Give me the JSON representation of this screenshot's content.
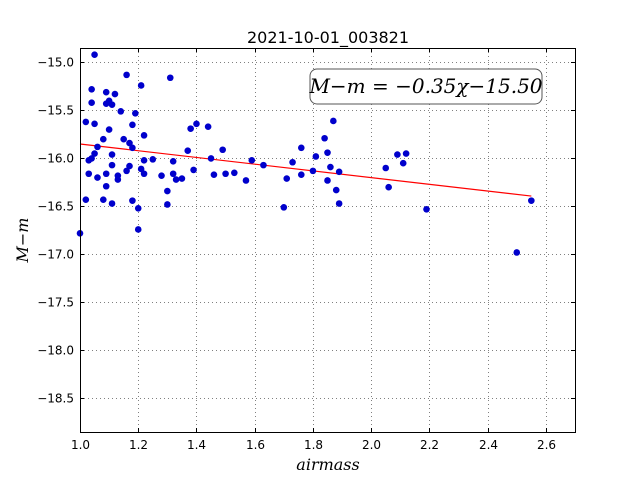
{
  "chart_data": {
    "type": "scatter",
    "title": "2021-10-01_003821",
    "xlabel": "airmass",
    "ylabel": "M−m",
    "xlim": [
      1.0,
      2.7
    ],
    "ylim": [
      -18.85,
      -14.85
    ],
    "y_inverted": true,
    "grid": true,
    "x_ticks": [
      "1.0",
      "1.2",
      "1.4",
      "1.6",
      "1.8",
      "2.0",
      "2.2",
      "2.4",
      "2.6"
    ],
    "y_ticks": [
      "−15.0",
      "−15.5",
      "−16.0",
      "−16.5",
      "−17.0",
      "−17.5",
      "−18.0",
      "−18.5"
    ],
    "annotation": "M−m = −0.35χ−15.50",
    "fit": {
      "slope": -0.35,
      "intercept": -15.5,
      "x_range": [
        1.0,
        2.55
      ],
      "color": "#ff0000"
    },
    "point_color": "#0000cc",
    "points": [
      [
        1.0,
        -16.78
      ],
      [
        1.02,
        -16.43
      ],
      [
        1.02,
        -15.62
      ],
      [
        1.03,
        -16.16
      ],
      [
        1.03,
        -16.02
      ],
      [
        1.04,
        -15.42
      ],
      [
        1.04,
        -15.28
      ],
      [
        1.04,
        -16.0
      ],
      [
        1.05,
        -14.92
      ],
      [
        1.05,
        -15.64
      ],
      [
        1.05,
        -15.95
      ],
      [
        1.06,
        -16.2
      ],
      [
        1.06,
        -15.88
      ],
      [
        1.08,
        -15.8
      ],
      [
        1.08,
        -16.43
      ],
      [
        1.09,
        -15.43
      ],
      [
        1.09,
        -15.31
      ],
      [
        1.09,
        -16.16
      ],
      [
        1.09,
        -16.29
      ],
      [
        1.1,
        -15.7
      ],
      [
        1.1,
        -15.4
      ],
      [
        1.11,
        -15.44
      ],
      [
        1.11,
        -15.96
      ],
      [
        1.11,
        -16.07
      ],
      [
        1.11,
        -16.47
      ],
      [
        1.12,
        -15.33
      ],
      [
        1.13,
        -16.22
      ],
      [
        1.13,
        -16.18
      ],
      [
        1.14,
        -15.51
      ],
      [
        1.15,
        -15.8
      ],
      [
        1.16,
        -15.13
      ],
      [
        1.16,
        -16.13
      ],
      [
        1.17,
        -15.84
      ],
      [
        1.17,
        -16.08
      ],
      [
        1.18,
        -15.89
      ],
      [
        1.18,
        -16.44
      ],
      [
        1.18,
        -15.65
      ],
      [
        1.19,
        -15.53
      ],
      [
        1.2,
        -16.52
      ],
      [
        1.2,
        -16.74
      ],
      [
        1.21,
        -15.24
      ],
      [
        1.21,
        -16.11
      ],
      [
        1.22,
        -15.76
      ],
      [
        1.22,
        -16.16
      ],
      [
        1.22,
        -16.02
      ],
      [
        1.25,
        -16.01
      ],
      [
        1.28,
        -16.18
      ],
      [
        1.3,
        -16.48
      ],
      [
        1.3,
        -16.34
      ],
      [
        1.31,
        -15.16
      ],
      [
        1.32,
        -16.03
      ],
      [
        1.32,
        -16.16
      ],
      [
        1.33,
        -16.22
      ],
      [
        1.35,
        -16.21
      ],
      [
        1.37,
        -15.92
      ],
      [
        1.38,
        -15.69
      ],
      [
        1.39,
        -16.12
      ],
      [
        1.4,
        -15.64
      ],
      [
        1.44,
        -15.67
      ],
      [
        1.45,
        -16.0
      ],
      [
        1.46,
        -16.17
      ],
      [
        1.49,
        -15.91
      ],
      [
        1.5,
        -16.16
      ],
      [
        1.53,
        -16.15
      ],
      [
        1.57,
        -16.23
      ],
      [
        1.59,
        -16.02
      ],
      [
        1.63,
        -16.07
      ],
      [
        1.7,
        -16.51
      ],
      [
        1.71,
        -16.21
      ],
      [
        1.73,
        -16.04
      ],
      [
        1.76,
        -16.17
      ],
      [
        1.76,
        -15.89
      ],
      [
        1.8,
        -16.13
      ],
      [
        1.81,
        -15.98
      ],
      [
        1.84,
        -15.79
      ],
      [
        1.85,
        -15.94
      ],
      [
        1.85,
        -16.23
      ],
      [
        1.86,
        -16.09
      ],
      [
        1.87,
        -15.61
      ],
      [
        1.88,
        -16.33
      ],
      [
        1.89,
        -16.14
      ],
      [
        1.89,
        -16.47
      ],
      [
        2.05,
        -16.1
      ],
      [
        2.06,
        -16.3
      ],
      [
        2.09,
        -15.96
      ],
      [
        2.11,
        -16.05
      ],
      [
        2.12,
        -15.95
      ],
      [
        2.19,
        -16.53
      ],
      [
        2.5,
        -16.98
      ],
      [
        2.55,
        -16.44
      ]
    ]
  }
}
